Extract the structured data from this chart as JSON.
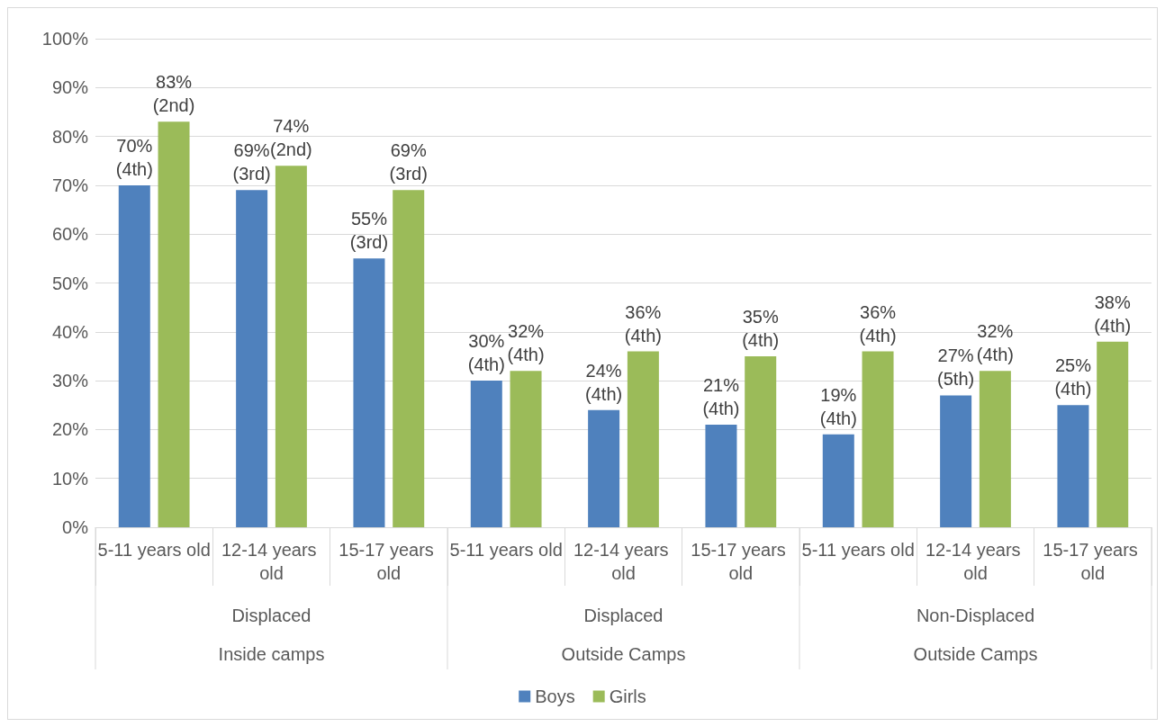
{
  "chart_data": {
    "type": "bar",
    "categories": [
      "5-11 years old",
      "12-14 years old",
      "15-17 years old",
      "5-11 years old",
      "12-14 years old",
      "15-17 years old",
      "5-11 years old",
      "12-14 years old",
      "15-17 years old"
    ],
    "series": [
      {
        "name": "Boys",
        "color": "#4f81bd",
        "values": [
          70,
          69,
          55,
          30,
          24,
          21,
          19,
          27,
          25
        ],
        "value_labels": [
          "70%\n(4th)",
          "69%\n(3rd)",
          "55%\n(3rd)",
          "30%\n(4th)",
          "24%\n(4th)",
          "21%\n(4th)",
          "19%\n(4th)",
          "27%\n(5th)",
          "25%\n(4th)"
        ]
      },
      {
        "name": "Girls",
        "color": "#9bbb59",
        "values": [
          83,
          74,
          69,
          32,
          36,
          35,
          36,
          32,
          38
        ],
        "value_labels": [
          "83%\n(2nd)",
          "74%\n(2nd)",
          "69%\n(3rd)",
          "32%\n(4th)",
          "36%\n(4th)",
          "35%\n(4th)",
          "36%\n(4th)",
          "32%\n(4th)",
          "38%\n(4th)"
        ]
      }
    ],
    "annotations": [
      "Displaced",
      "Inside camps",
      "Displaced",
      "Outside Camps",
      "Non-Displaced",
      "Outside Camps"
    ],
    "ylim": [
      0,
      100
    ],
    "yticks": [
      {
        "value": 0,
        "label": "0%"
      },
      {
        "value": 10,
        "label": "10%"
      },
      {
        "value": 20,
        "label": "20%"
      },
      {
        "value": 30,
        "label": "30%"
      },
      {
        "value": 40,
        "label": "40%"
      },
      {
        "value": 50,
        "label": "50%"
      },
      {
        "value": 60,
        "label": "60%"
      },
      {
        "value": 70,
        "label": "70%"
      },
      {
        "value": 80,
        "label": "80%"
      },
      {
        "value": 90,
        "label": "90%"
      },
      {
        "value": 100,
        "label": "100%"
      }
    ],
    "grid": "y",
    "legend": "bottom"
  }
}
